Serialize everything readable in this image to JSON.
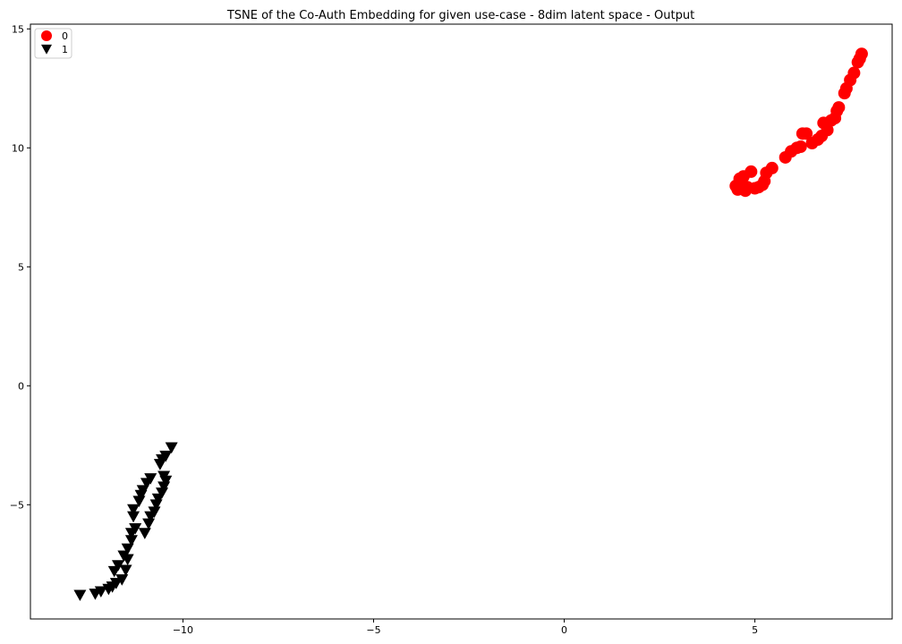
{
  "chart_data": {
    "type": "scatter",
    "title": "TSNE of the Co-Auth Embedding for given use-case - 8dim latent space - Output",
    "xlabel": "",
    "ylabel": "",
    "xlim": [
      -14,
      8.6
    ],
    "ylim": [
      -9.8,
      15.2
    ],
    "xticks": [
      {
        "value": -10,
        "label": "−10"
      },
      {
        "value": -5,
        "label": "−5"
      },
      {
        "value": 0,
        "label": "0"
      },
      {
        "value": 5,
        "label": "5"
      }
    ],
    "yticks": [
      {
        "value": -5,
        "label": "−5"
      },
      {
        "value": 0,
        "label": "0"
      },
      {
        "value": 5,
        "label": "5"
      },
      {
        "value": 10,
        "label": "10"
      },
      {
        "value": 15,
        "label": "15"
      }
    ],
    "grid": false,
    "legend_position": "top-left",
    "series": [
      {
        "name": "0",
        "marker": "circle",
        "color": "#ff0000",
        "points": [
          [
            4.5,
            8.4
          ],
          [
            4.55,
            8.25
          ],
          [
            4.6,
            8.7
          ],
          [
            4.65,
            8.3
          ],
          [
            4.7,
            8.8
          ],
          [
            4.75,
            8.2
          ],
          [
            4.8,
            8.35
          ],
          [
            4.9,
            9.0
          ],
          [
            5.0,
            8.3
          ],
          [
            5.1,
            8.35
          ],
          [
            5.2,
            8.45
          ],
          [
            5.25,
            8.6
          ],
          [
            5.3,
            8.95
          ],
          [
            5.45,
            9.15
          ],
          [
            5.8,
            9.6
          ],
          [
            5.95,
            9.85
          ],
          [
            6.1,
            10.0
          ],
          [
            6.2,
            10.05
          ],
          [
            6.25,
            10.6
          ],
          [
            6.35,
            10.6
          ],
          [
            6.5,
            10.2
          ],
          [
            6.65,
            10.35
          ],
          [
            6.75,
            10.5
          ],
          [
            6.8,
            11.05
          ],
          [
            6.9,
            10.75
          ],
          [
            7.0,
            11.15
          ],
          [
            7.1,
            11.25
          ],
          [
            7.15,
            11.55
          ],
          [
            7.2,
            11.7
          ],
          [
            7.35,
            12.3
          ],
          [
            7.4,
            12.5
          ],
          [
            7.5,
            12.85
          ],
          [
            7.6,
            13.15
          ],
          [
            7.7,
            13.6
          ],
          [
            7.75,
            13.75
          ],
          [
            7.8,
            13.95
          ]
        ]
      },
      {
        "name": "1",
        "marker": "triangle-down",
        "color": "#000000",
        "points": [
          [
            -12.7,
            -8.8
          ],
          [
            -12.3,
            -8.75
          ],
          [
            -12.15,
            -8.65
          ],
          [
            -11.95,
            -8.55
          ],
          [
            -11.85,
            -8.45
          ],
          [
            -11.75,
            -8.3
          ],
          [
            -11.6,
            -8.15
          ],
          [
            -11.8,
            -7.8
          ],
          [
            -11.7,
            -7.55
          ],
          [
            -11.5,
            -7.75
          ],
          [
            -11.45,
            -7.3
          ],
          [
            -11.55,
            -7.15
          ],
          [
            -11.45,
            -6.85
          ],
          [
            -11.35,
            -6.5
          ],
          [
            -11.35,
            -6.2
          ],
          [
            -11.25,
            -6.0
          ],
          [
            -11.3,
            -5.5
          ],
          [
            -11.3,
            -5.2
          ],
          [
            -11.15,
            -4.85
          ],
          [
            -11.1,
            -4.6
          ],
          [
            -11.05,
            -4.4
          ],
          [
            -10.95,
            -4.1
          ],
          [
            -10.85,
            -3.9
          ],
          [
            -11.0,
            -6.2
          ],
          [
            -10.9,
            -5.8
          ],
          [
            -10.85,
            -5.5
          ],
          [
            -10.75,
            -5.3
          ],
          [
            -10.7,
            -5.0
          ],
          [
            -10.65,
            -4.75
          ],
          [
            -10.55,
            -4.5
          ],
          [
            -10.5,
            -4.25
          ],
          [
            -10.45,
            -4.0
          ],
          [
            -10.5,
            -3.8
          ],
          [
            -10.6,
            -3.3
          ],
          [
            -10.55,
            -3.1
          ],
          [
            -10.45,
            -2.95
          ],
          [
            -10.3,
            -2.6
          ]
        ]
      }
    ]
  }
}
